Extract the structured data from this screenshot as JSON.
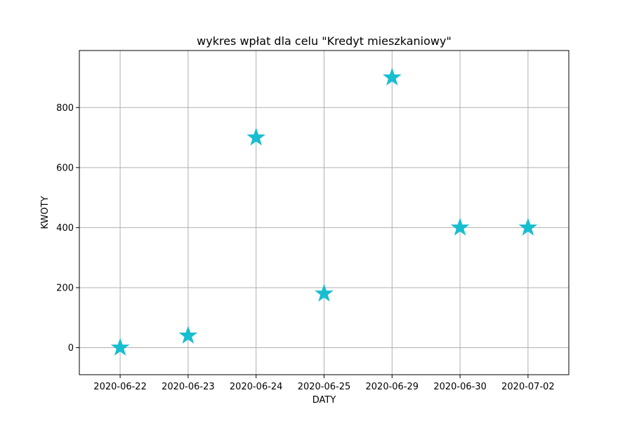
{
  "chart_data": {
    "type": "scatter",
    "title": "wykres wpłat dla celu \"Kredyt mieszkaniowy\"",
    "xlabel": "DATY",
    "ylabel": "KWOTY",
    "categories": [
      "2020-06-22",
      "2020-06-23",
      "2020-06-24",
      "2020-06-25",
      "2020-06-29",
      "2020-06-30",
      "2020-07-02"
    ],
    "values": [
      0,
      40,
      700,
      180,
      900,
      400,
      400
    ],
    "yticks": [
      0,
      200,
      400,
      600,
      800
    ],
    "ylim": [
      -90,
      990
    ],
    "marker": "star",
    "color": "#17becf",
    "grid": true
  }
}
